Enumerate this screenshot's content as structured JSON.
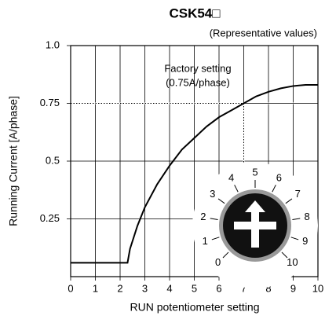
{
  "chart_data": {
    "type": "line",
    "title": "CSK54□",
    "subtitle": "(Representative values)",
    "x_label": "RUN potentiometer setting",
    "y_label": "Running Current [A/phase]",
    "annotation": [
      "Factory setting",
      "(0.75A/phase)"
    ],
    "x": [
      0,
      2.3,
      2.4,
      2.7,
      3,
      3.5,
      4,
      4.5,
      5,
      5.5,
      6,
      6.5,
      7,
      7.5,
      8,
      8.5,
      9,
      9.5,
      10
    ],
    "series": [
      {
        "color": "#000000",
        "values": [
          0.06,
          0.06,
          0.12,
          0.22,
          0.3,
          0.4,
          0.48,
          0.55,
          0.6,
          0.65,
          0.69,
          0.72,
          0.75,
          0.78,
          0.8,
          0.815,
          0.825,
          0.83,
          0.83
        ]
      }
    ],
    "xlim": [
      0,
      10
    ],
    "xticks": [
      0,
      1,
      2,
      3,
      4,
      5,
      6,
      7,
      8,
      9,
      10
    ],
    "ylim": [
      0,
      1
    ],
    "yticks": [
      0.25,
      0.5,
      0.75,
      {
        "value": 1,
        "label": "1.0"
      }
    ],
    "grid": true,
    "dial_labels": [
      0,
      1,
      2,
      3,
      4,
      5,
      6,
      7,
      8,
      9,
      10
    ]
  }
}
